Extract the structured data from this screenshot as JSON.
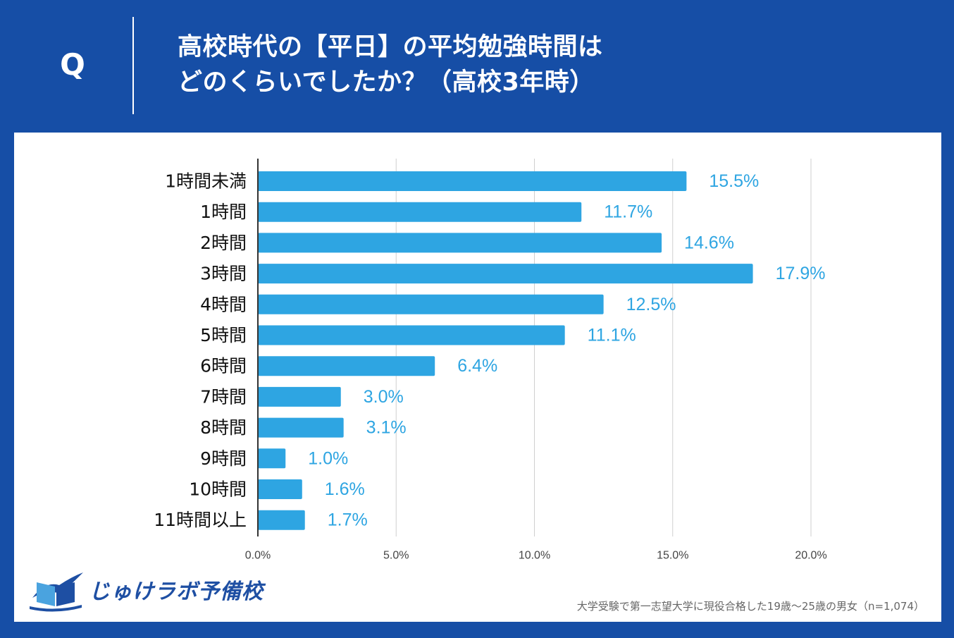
{
  "header": {
    "q_mark": "Q",
    "title_line1": "高校時代の【平日】の平均勉強時間は",
    "title_line2": "どのくらいでしたか？（高校3年時）"
  },
  "colors": {
    "background": "#164ea6",
    "panel": "#ffffff",
    "bar": "#2ea5e2",
    "value_label": "#2ea5e2",
    "grid": "#cfcfcf"
  },
  "chart_data": {
    "type": "bar",
    "orientation": "horizontal",
    "categories": [
      "1時間未満",
      "1時間",
      "2時間",
      "3時間",
      "4時間",
      "5時間",
      "6時間",
      "7時間",
      "8時間",
      "9時間",
      "10時間",
      "11時間以上"
    ],
    "values": [
      15.5,
      11.7,
      14.6,
      17.9,
      12.5,
      11.1,
      6.4,
      3.0,
      3.1,
      1.0,
      1.6,
      1.7
    ],
    "value_labels": [
      "15.5%",
      "11.7%",
      "14.6%",
      "17.9%",
      "12.5%",
      "11.1%",
      "6.4%",
      "3.0%",
      "3.1%",
      "1.0%",
      "1.6%",
      "1.7%"
    ],
    "xlim": [
      0,
      20
    ],
    "xticks": [
      0,
      5,
      10,
      15,
      20
    ],
    "xtick_labels": [
      "0.0%",
      "5.0%",
      "10.0%",
      "15.0%",
      "20.0%"
    ],
    "grid": true,
    "legend": "none",
    "unit": "%"
  },
  "logo": {
    "text": "じゅけラボ予備校"
  },
  "footnote": "大学受験で第一志望大学に現役合格した19歳〜25歳の男女（n=1,074）"
}
